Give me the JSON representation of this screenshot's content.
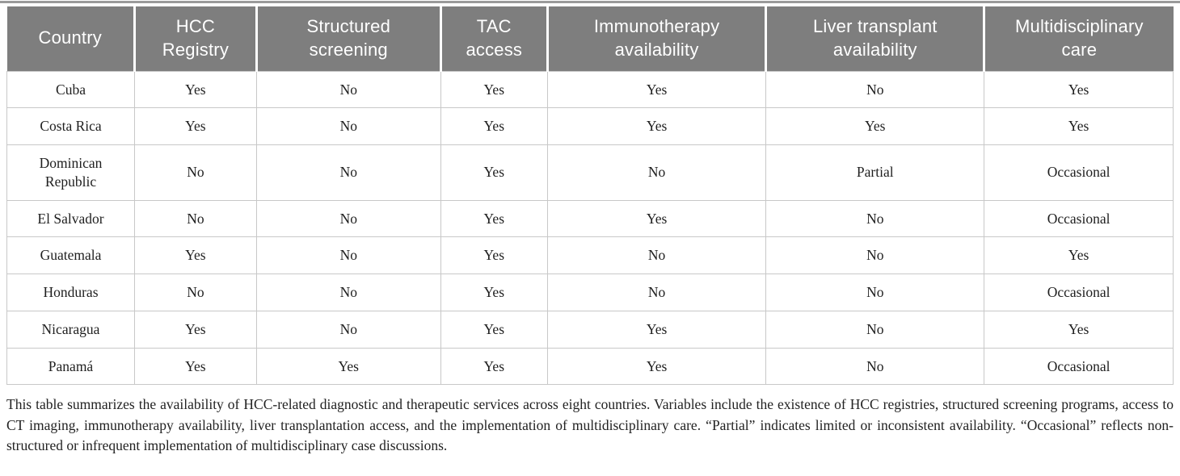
{
  "table": {
    "columns": [
      "Country",
      "HCC\nRegistry",
      "Structured\nscreening",
      "TAC\naccess",
      "Immunotherapy\navailability",
      "Liver transplant\navailability",
      "Multidisciplinary\ncare"
    ],
    "rows": [
      [
        "Cuba",
        "Yes",
        "No",
        "Yes",
        "Yes",
        "No",
        "Yes"
      ],
      [
        "Costa Rica",
        "Yes",
        "No",
        "Yes",
        "Yes",
        "Yes",
        "Yes"
      ],
      [
        "Dominican\nRepublic",
        "No",
        "No",
        "Yes",
        "No",
        "Partial",
        "Occasional"
      ],
      [
        "El Salvador",
        "No",
        "No",
        "Yes",
        "Yes",
        "No",
        "Occasional"
      ],
      [
        "Guatemala",
        "Yes",
        "No",
        "Yes",
        "No",
        "No",
        "Yes"
      ],
      [
        "Honduras",
        "No",
        "No",
        "Yes",
        "No",
        "No",
        "Occasional"
      ],
      [
        "Nicaragua",
        "Yes",
        "No",
        "Yes",
        "Yes",
        "No",
        "Yes"
      ],
      [
        "Panamá",
        "Yes",
        "Yes",
        "Yes",
        "Yes",
        "No",
        "Occasional"
      ]
    ]
  },
  "footnote": "This table summarizes the availability of HCC-related diagnostic and therapeutic services across eight countries. Variables include the existence of HCC registries, structured screening programs, access to CT imaging, immunotherapy availability, liver transplantation access, and the implementation of multidisciplinary care. “Partial” indicates limited or inconsistent availability. “Occasional” reflects non-structured or infrequent implementation of multidisciplinary case discussions.",
  "colors": {
    "header_background": "#7e7e7e",
    "header_text": "#ffffff",
    "body_text": "#1f1f1f",
    "cell_border": "#c8c8c8",
    "top_rule": "#9a9a9a"
  }
}
